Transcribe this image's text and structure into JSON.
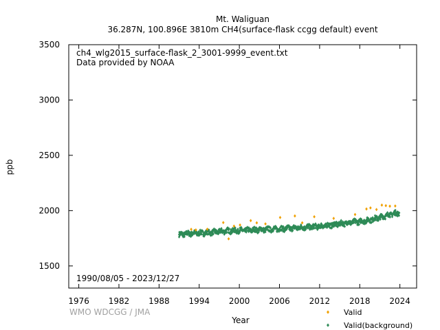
{
  "chart_data": {
    "type": "scatter",
    "title": "Mt. Waliguan",
    "subtitle": "36.287N, 100.896E 3810m    CH4(surface-flask ccgg default) event",
    "file_label": "ch4_wlg2015_surface-flask_2_3001-9999_event.txt",
    "provider_label": "Data provided by NOAA",
    "date_range_label": "1990/08/05 - 2023/12/27",
    "watermark": "WMO WDCGG / JMA",
    "xlabel": "Year",
    "ylabel": "ppb",
    "xlim": [
      1974.5,
      2026.5
    ],
    "ylim": [
      1300,
      3500
    ],
    "xticks": [
      "1976",
      "1982",
      "1988",
      "1994",
      "2000",
      "2006",
      "2012",
      "2018",
      "2024"
    ],
    "yticks": [
      "1500",
      "2000",
      "2500",
      "3000",
      "3500"
    ],
    "legend_position": "bottom-right",
    "series": [
      {
        "name": "Valid",
        "color": "#f0a000",
        "marker": "diamond",
        "x": [
          1992.8,
          1993.5,
          1995.2,
          1997.6,
          1998.4,
          1999.2,
          2000.1,
          2001.7,
          2002.6,
          2003.9,
          2006.1,
          2008.3,
          2009.4,
          2011.2,
          2014.1,
          2017.3,
          2019.0,
          2019.6,
          2020.5,
          2021.3,
          2021.9,
          2022.5,
          2023.3
        ],
        "y": [
          1831,
          1826,
          1832,
          1892,
          1745,
          1860,
          1870,
          1910,
          1890,
          1880,
          1938,
          1952,
          1890,
          1945,
          1930,
          1965,
          2015,
          2025,
          2010,
          2050,
          2045,
          2040,
          2042
        ]
      },
      {
        "name": "Valid(background)",
        "color": "#2e8b57",
        "marker": "diamond",
        "x": [
          1991.0,
          1992.0,
          1993.0,
          1994.0,
          1995.0,
          1996.0,
          1997.0,
          1998.0,
          1999.0,
          2000.0,
          2001.0,
          2002.0,
          2003.0,
          2004.0,
          2005.0,
          2006.0,
          2007.0,
          2008.0,
          2009.0,
          2010.0,
          2011.0,
          2012.0,
          2013.0,
          2014.0,
          2015.0,
          2016.0,
          2017.0,
          2018.0,
          2019.0,
          2020.0,
          2021.0,
          2022.0,
          2023.0,
          2023.9
        ],
        "y": [
          1784,
          1790,
          1794,
          1796,
          1800,
          1804,
          1810,
          1816,
          1818,
          1820,
          1822,
          1824,
          1828,
          1830,
          1833,
          1835,
          1838,
          1842,
          1846,
          1850,
          1854,
          1858,
          1864,
          1872,
          1880,
          1888,
          1896,
          1902,
          1910,
          1922,
          1938,
          1956,
          1972,
          1980
        ],
        "spread_ppb": 22
      }
    ]
  }
}
